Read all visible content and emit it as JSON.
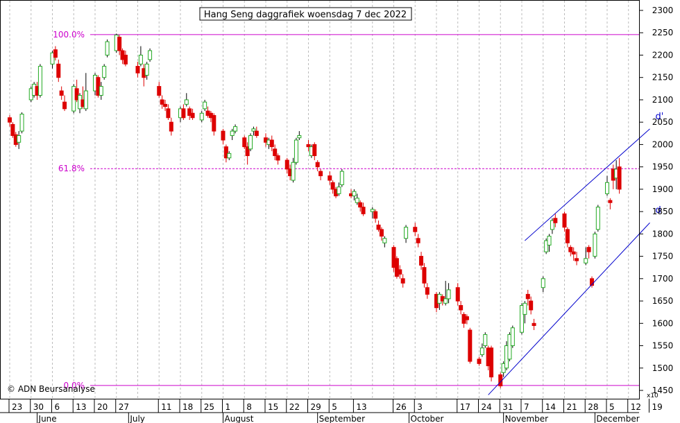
{
  "chart_data": {
    "type": "candlestick",
    "title": "Hang Seng daggrafiek woensdag 7 dec 2022",
    "watermark": "© ADN Beursanalyse",
    "axis_multiplier": "x10",
    "ylim": [
      1400,
      2320
    ],
    "yticks": [
      1450,
      1500,
      1550,
      1600,
      1650,
      1700,
      1750,
      1800,
      1850,
      1900,
      1950,
      2000,
      2050,
      2100,
      2150,
      2200,
      2250,
      2300
    ],
    "x_day_labels": [
      "23",
      "30",
      "6",
      "13",
      "20",
      "27",
      "11",
      "18",
      "25",
      "1",
      "8",
      "15",
      "22",
      "29",
      "5",
      "13",
      "26",
      "3",
      "17",
      "24",
      "31",
      "7",
      "14",
      "21",
      "28",
      "5",
      "12",
      "19"
    ],
    "x_month_labels": [
      "June",
      "July",
      "August",
      "September",
      "October",
      "November",
      "December"
    ],
    "fibonacci_levels": [
      {
        "label": "100.0%",
        "value": 2246
      },
      {
        "label": "61.8%",
        "value": 1946
      },
      {
        "label": "0.0%",
        "value": 1461
      }
    ],
    "trend_lines": [
      {
        "label": "d'",
        "from": {
          "x": "2022-11-08",
          "y": 1785
        },
        "to": {
          "x": "2022-12-19",
          "y": 2035
        }
      },
      {
        "label": "d",
        "from": {
          "x": "2022-10-27",
          "y": 1440
        },
        "to": {
          "x": "2022-12-19",
          "y": 1825
        }
      }
    ],
    "colors": {
      "up": "#22aa22",
      "down": "#dd0000",
      "fib": "#cc00cc",
      "trend": "#0000cc",
      "grid": "#bbbbbb"
    },
    "candles": [
      [
        "2022-05-23",
        2060,
        2050,
        2066,
        2040
      ],
      [
        "2022-05-24",
        2045,
        2020,
        2050,
        2015
      ],
      [
        "2022-05-25",
        2022,
        2000,
        2028,
        1995
      ],
      [
        "2022-05-26",
        2005,
        2020,
        2030,
        1990
      ],
      [
        "2022-05-27",
        2030,
        2068,
        2072,
        2025
      ],
      [
        "2022-05-30",
        2100,
        2125,
        2130,
        2095
      ],
      [
        "2022-05-31",
        2110,
        2135,
        2140,
        2105
      ],
      [
        "2022-06-01",
        2130,
        2110,
        2140,
        2100
      ],
      [
        "2022-06-02",
        2110,
        2175,
        2180,
        2105
      ],
      [
        "2022-06-06",
        2180,
        2205,
        2210,
        2170
      ],
      [
        "2022-06-07",
        2212,
        2195,
        2220,
        2188
      ],
      [
        "2022-06-08",
        2180,
        2150,
        2190,
        2140
      ],
      [
        "2022-06-09",
        2120,
        2110,
        2130,
        2100
      ],
      [
        "2022-06-10",
        2095,
        2080,
        2110,
        2075
      ],
      [
        "2022-06-13",
        2075,
        2130,
        2135,
        2070
      ],
      [
        "2022-06-14",
        2125,
        2100,
        2145,
        2095
      ],
      [
        "2022-06-15",
        2080,
        2110,
        2115,
        2070
      ],
      [
        "2022-06-16",
        2100,
        2085,
        2130,
        2080
      ],
      [
        "2022-06-17",
        2080,
        2120,
        2160,
        2075
      ],
      [
        "2022-06-20",
        2120,
        2155,
        2160,
        2110
      ],
      [
        "2022-06-21",
        2150,
        2110,
        2155,
        2105
      ],
      [
        "2022-06-22",
        2110,
        2130,
        2140,
        2100
      ],
      [
        "2022-06-23",
        2150,
        2175,
        2180,
        2145
      ],
      [
        "2022-06-24",
        2200,
        2230,
        2235,
        2195
      ],
      [
        "2022-06-27",
        2210,
        2245,
        2248,
        2205
      ],
      [
        "2022-06-28",
        2240,
        2210,
        2245,
        2200
      ],
      [
        "2022-06-29",
        2210,
        2190,
        2215,
        2180
      ],
      [
        "2022-06-30",
        2200,
        2180,
        2210,
        2175
      ],
      [
        "2022-07-04",
        2175,
        2160,
        2185,
        2150
      ],
      [
        "2022-07-05",
        2180,
        2200,
        2220,
        2175
      ],
      [
        "2022-07-06",
        2170,
        2150,
        2180,
        2130
      ],
      [
        "2022-07-07",
        2155,
        2180,
        2185,
        2145
      ],
      [
        "2022-07-08",
        2190,
        2210,
        2215,
        2185
      ],
      [
        "2022-07-11",
        2130,
        2110,
        2140,
        2105
      ],
      [
        "2022-07-12",
        2100,
        2090,
        2110,
        2080
      ],
      [
        "2022-07-13",
        2090,
        2085,
        2100,
        2075
      ],
      [
        "2022-07-14",
        2080,
        2060,
        2090,
        2055
      ],
      [
        "2022-07-15",
        2050,
        2030,
        2060,
        2020
      ],
      [
        "2022-07-18",
        2060,
        2080,
        2085,
        2050
      ],
      [
        "2022-07-19",
        2080,
        2060,
        2090,
        2055
      ],
      [
        "2022-07-20",
        2090,
        2100,
        2115,
        2085
      ],
      [
        "2022-07-21",
        2080,
        2065,
        2085,
        2055
      ],
      [
        "2022-07-22",
        2070,
        2060,
        2080,
        2055
      ],
      [
        "2022-07-25",
        2055,
        2070,
        2075,
        2050
      ],
      [
        "2022-07-26",
        2080,
        2095,
        2100,
        2075
      ],
      [
        "2022-07-27",
        2075,
        2065,
        2085,
        2060
      ],
      [
        "2022-07-28",
        2070,
        2060,
        2075,
        2050
      ],
      [
        "2022-07-29",
        2065,
        2030,
        2070,
        2020
      ],
      [
        "2022-08-01",
        2030,
        2010,
        2035,
        2000
      ],
      [
        "2022-08-02",
        1995,
        1970,
        2000,
        1960
      ],
      [
        "2022-08-03",
        1970,
        1980,
        1985,
        1965
      ],
      [
        "2022-08-04",
        2020,
        2030,
        2035,
        2010
      ],
      [
        "2022-08-05",
        2030,
        2040,
        2045,
        2025
      ],
      [
        "2022-08-08",
        2015,
        1995,
        2020,
        1990
      ],
      [
        "2022-08-09",
        1995,
        1975,
        2005,
        1955
      ],
      [
        "2022-08-10",
        1990,
        2020,
        2025,
        1985
      ],
      [
        "2022-08-11",
        2030,
        2035,
        2040,
        2020
      ],
      [
        "2022-08-12",
        2030,
        2020,
        2040,
        2015
      ],
      [
        "2022-08-15",
        2015,
        2005,
        2025,
        1995
      ],
      [
        "2022-08-16",
        2000,
        2010,
        2015,
        1990
      ],
      [
        "2022-08-17",
        2010,
        1995,
        2020,
        1985
      ],
      [
        "2022-08-18",
        1990,
        1975,
        2000,
        1965
      ],
      [
        "2022-08-19",
        1975,
        1965,
        1980,
        1955
      ],
      [
        "2022-08-22",
        1965,
        1945,
        1970,
        1935
      ],
      [
        "2022-08-23",
        1945,
        1930,
        1955,
        1920
      ],
      [
        "2022-08-24",
        1920,
        1960,
        1970,
        1915
      ],
      [
        "2022-08-25",
        1960,
        2010,
        2015,
        1955
      ],
      [
        "2022-08-26",
        2015,
        2020,
        2030,
        2010
      ],
      [
        "2022-08-29",
        2000,
        1995,
        2010,
        1985
      ],
      [
        "2022-08-30",
        1975,
        1995,
        2000,
        1970
      ],
      [
        "2022-08-31",
        2000,
        1975,
        2005,
        1965
      ],
      [
        "2022-09-01",
        1960,
        1950,
        1965,
        1940
      ],
      [
        "2022-09-02",
        1940,
        1930,
        1945,
        1920
      ],
      [
        "2022-09-05",
        1930,
        1920,
        1940,
        1910
      ],
      [
        "2022-09-06",
        1915,
        1900,
        1920,
        1890
      ],
      [
        "2022-09-07",
        1900,
        1885,
        1905,
        1880
      ],
      [
        "2022-09-08",
        1890,
        1905,
        1915,
        1885
      ],
      [
        "2022-09-09",
        1910,
        1940,
        1945,
        1905
      ],
      [
        "2022-09-12",
        1890,
        1885,
        1900,
        1880
      ],
      [
        "2022-09-13",
        1885,
        1895,
        1900,
        1875
      ],
      [
        "2022-09-14",
        1870,
        1880,
        1890,
        1865
      ],
      [
        "2022-09-15",
        1870,
        1860,
        1875,
        1850
      ],
      [
        "2022-09-16",
        1860,
        1845,
        1870,
        1840
      ],
      [
        "2022-09-19",
        1850,
        1855,
        1860,
        1835
      ],
      [
        "2022-09-20",
        1850,
        1835,
        1855,
        1825
      ],
      [
        "2022-09-21",
        1820,
        1810,
        1830,
        1805
      ],
      [
        "2022-09-22",
        1810,
        1795,
        1815,
        1785
      ],
      [
        "2022-09-23",
        1780,
        1790,
        1795,
        1770
      ],
      [
        "2022-09-26",
        1770,
        1725,
        1775,
        1715
      ],
      [
        "2022-09-27",
        1745,
        1705,
        1750,
        1700
      ],
      [
        "2022-09-28",
        1720,
        1710,
        1730,
        1700
      ],
      [
        "2022-09-29",
        1700,
        1690,
        1710,
        1680
      ],
      [
        "2022-09-30",
        1790,
        1815,
        1820,
        1780
      ],
      [
        "2022-10-03",
        1815,
        1805,
        1825,
        1795
      ],
      [
        "2022-10-04",
        1790,
        1780,
        1800,
        1770
      ],
      [
        "2022-10-05",
        1750,
        1730,
        1760,
        1720
      ],
      [
        "2022-10-06",
        1725,
        1690,
        1735,
        1680
      ],
      [
        "2022-10-07",
        1680,
        1665,
        1690,
        1655
      ],
      [
        "2022-10-10",
        1665,
        1635,
        1670,
        1625
      ],
      [
        "2022-10-11",
        1645,
        1665,
        1670,
        1630
      ],
      [
        "2022-10-12",
        1660,
        1650,
        1665,
        1640
      ],
      [
        "2022-10-13",
        1645,
        1655,
        1695,
        1640
      ],
      [
        "2022-10-14",
        1655,
        1675,
        1690,
        1645
      ],
      [
        "2022-10-17",
        1680,
        1650,
        1690,
        1640
      ],
      [
        "2022-10-18",
        1640,
        1630,
        1650,
        1620
      ],
      [
        "2022-10-19",
        1620,
        1600,
        1625,
        1590
      ],
      [
        "2022-10-20",
        1615,
        1608,
        1620,
        1598
      ],
      [
        "2022-10-21",
        1585,
        1515,
        1590,
        1510
      ],
      [
        "2022-10-24",
        1520,
        1510,
        1525,
        1505
      ],
      [
        "2022-10-25",
        1530,
        1545,
        1555,
        1525
      ],
      [
        "2022-10-26",
        1550,
        1575,
        1580,
        1545
      ],
      [
        "2022-10-27",
        1545,
        1505,
        1550,
        1495
      ],
      [
        "2022-10-28",
        1545,
        1480,
        1550,
        1470
      ],
      [
        "2022-10-31",
        1485,
        1460,
        1490,
        1455
      ],
      [
        "2022-11-01",
        1490,
        1510,
        1515,
        1480
      ],
      [
        "2022-11-02",
        1500,
        1550,
        1560,
        1495
      ],
      [
        "2022-11-03",
        1520,
        1575,
        1580,
        1515
      ],
      [
        "2022-11-04",
        1550,
        1590,
        1595,
        1545
      ],
      [
        "2022-11-07",
        1580,
        1640,
        1645,
        1575
      ],
      [
        "2022-11-08",
        1620,
        1645,
        1650,
        1600
      ],
      [
        "2022-11-09",
        1665,
        1655,
        1675,
        1640
      ],
      [
        "2022-11-10",
        1650,
        1630,
        1660,
        1620
      ],
      [
        "2022-11-11",
        1600,
        1595,
        1610,
        1585
      ],
      [
        "2022-11-14",
        1680,
        1700,
        1705,
        1670
      ],
      [
        "2022-11-15",
        1760,
        1785,
        1790,
        1755
      ],
      [
        "2022-11-16",
        1775,
        1795,
        1800,
        1760
      ],
      [
        "2022-11-17",
        1810,
        1830,
        1835,
        1800
      ],
      [
        "2022-11-18",
        1835,
        1825,
        1845,
        1815
      ],
      [
        "2022-11-21",
        1845,
        1815,
        1850,
        1805
      ],
      [
        "2022-11-22",
        1810,
        1780,
        1815,
        1770
      ],
      [
        "2022-11-23",
        1770,
        1760,
        1775,
        1750
      ],
      [
        "2022-11-24",
        1760,
        1755,
        1770,
        1740
      ],
      [
        "2022-11-25",
        1745,
        1740,
        1760,
        1730
      ],
      [
        "2022-11-28",
        1735,
        1745,
        1770,
        1730
      ],
      [
        "2022-11-29",
        1770,
        1760,
        1775,
        1745
      ],
      [
        "2022-11-30",
        1700,
        1685,
        1705,
        1680
      ],
      [
        "2022-12-01",
        1750,
        1800,
        1805,
        1745
      ],
      [
        "2022-12-02",
        1810,
        1860,
        1865,
        1805
      ],
      [
        "2022-12-05",
        1890,
        1915,
        1930,
        1885
      ],
      [
        "2022-12-06",
        1875,
        1870,
        1880,
        1855
      ],
      [
        "2022-12-07",
        1945,
        1920,
        1955,
        1900
      ],
      [
        "2022-12-08",
        1925,
        1945,
        1965,
        1900
      ],
      [
        "2022-12-09",
        1950,
        1900,
        1970,
        1890
      ]
    ]
  }
}
